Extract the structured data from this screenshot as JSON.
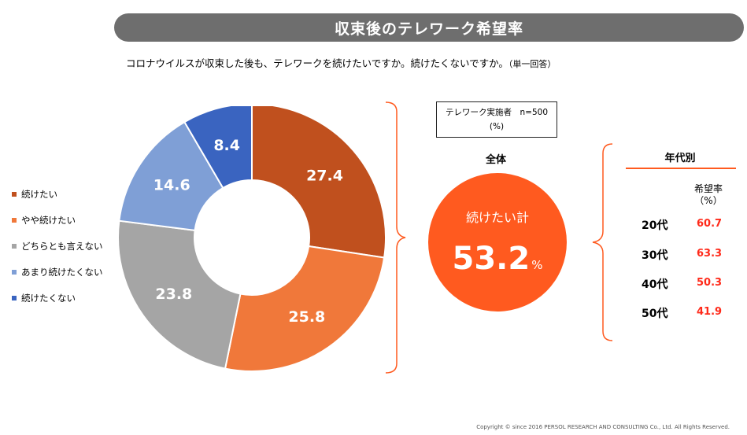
{
  "title": "収束後のテレワーク希望率",
  "question": "コロナウイルスが収束した後も、テレワークを続けたいですか。続けたくないですか。",
  "question_note": "（単一回答）",
  "sample_box": {
    "line1": "テレワーク実施者　n=500",
    "line2": "(%)"
  },
  "overall": {
    "heading": "全体",
    "label": "続けたい計",
    "value": "53.2",
    "unit": "%"
  },
  "age": {
    "heading": "年代別",
    "col_header": "希望率",
    "col_unit": "（%）",
    "rows": [
      {
        "label": "20代",
        "value": "60.7"
      },
      {
        "label": "30代",
        "value": "63.3"
      },
      {
        "label": "40代",
        "value": "50.3"
      },
      {
        "label": "50代",
        "value": "41.9"
      }
    ]
  },
  "chart_data": {
    "type": "pie",
    "donut": true,
    "categories": [
      "続けたい",
      "やや続けたい",
      "どちらとも言えない",
      "あまり続けたくない",
      "続けたくない"
    ],
    "values": [
      27.4,
      25.8,
      23.8,
      14.6,
      8.4
    ],
    "colors": [
      "#c0501e",
      "#f0783a",
      "#a5a5a5",
      "#7f9fd6",
      "#3a64c0"
    ],
    "legend_position": "left"
  },
  "colors": {
    "accent": "#ff5a1f",
    "value_red": "#ff2a1a",
    "title_bar": "#6e6e6e"
  },
  "copyright": "Copyright © since 2016  PERSOL  RESEARCH AND CONSULTING Co., Ltd. All Rights Reserved."
}
